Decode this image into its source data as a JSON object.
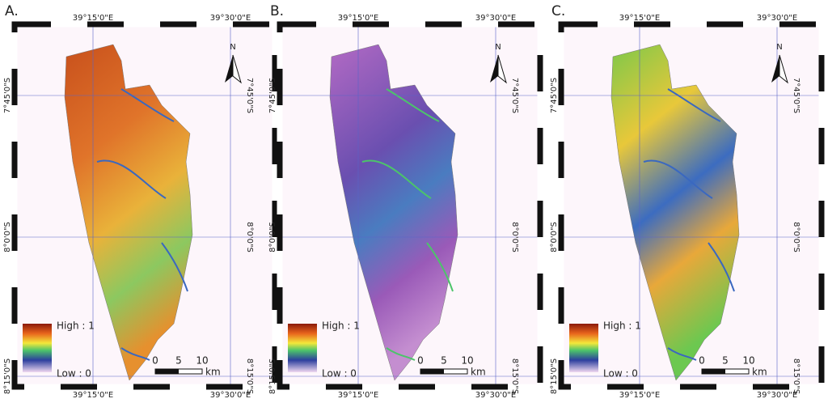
{
  "panels": [
    {
      "label": "A.",
      "top_labels": [
        "39°15'0\"E",
        "39°30'0\"E"
      ],
      "bottom_labels": [
        "39°15'0\"E",
        "39°30'0\"E"
      ],
      "left_labels": [
        "7°45'0\"S",
        "8°0'0\"S",
        "8°15'0\"S"
      ],
      "right_labels": [
        "7°45'0\"S",
        "8°0'0\"S",
        "8°15'0\"S"
      ],
      "legend_high": "High : 1",
      "legend_low": "Low : 0",
      "scale_ticks": [
        "0",
        "5",
        "10"
      ],
      "scale_unit": "km",
      "north": "N"
    },
    {
      "label": "B.",
      "top_labels": [
        "39°15'0\"E",
        "39°30'0\"E"
      ],
      "bottom_labels": [
        "39°15'0\"E",
        "39°30'0\"E"
      ],
      "left_labels": [
        "7°45'0\"S",
        "8°0'0\"S",
        "8°15'0\"S"
      ],
      "right_labels": [
        "7°45'0\"S",
        "8°0'0\"S",
        "8°15'0\"S"
      ],
      "legend_high": "High : 1",
      "legend_low": "Low : 0",
      "scale_ticks": [
        "0",
        "5",
        "10"
      ],
      "scale_unit": "km",
      "north": "N"
    },
    {
      "label": "C.",
      "top_labels": [
        "39°15'0\"E",
        "39°30'0\"E"
      ],
      "bottom_labels": [
        "39°15'0\"E",
        "39°30'0\"E"
      ],
      "left_labels": [
        "7°45'0\"S",
        "8°0'0\"S",
        "8°15'0\"S"
      ],
      "right_labels": [
        "7°45'0\"S",
        "8°0'0\"S",
        "8°15'0\"S"
      ],
      "legend_high": "High : 1",
      "legend_low": "Low : 0",
      "scale_ticks": [
        "0",
        "5",
        "10"
      ],
      "scale_unit": "km",
      "north": "N"
    }
  ]
}
